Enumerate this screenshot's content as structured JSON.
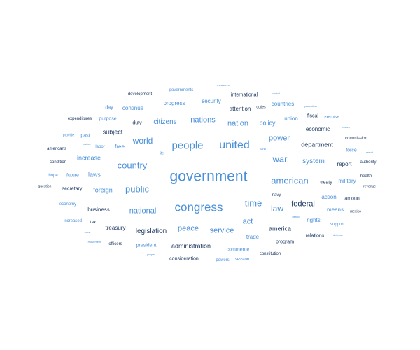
{
  "colors": {
    "blue": "#4a90d9",
    "navy": "#1f3b63"
  },
  "words": [
    {
      "text": "measures",
      "c": "blue"
    },
    {
      "text": "control",
      "c": "blue"
    },
    {
      "text": "development",
      "c": "navy"
    },
    {
      "text": "governments",
      "c": "blue"
    },
    {
      "text": "international",
      "c": "navy"
    },
    {
      "text": "security",
      "c": "blue"
    },
    {
      "text": "progress",
      "c": "blue"
    },
    {
      "text": "countries",
      "c": "blue"
    },
    {
      "text": "protection",
      "c": "blue"
    },
    {
      "text": "day",
      "c": "blue"
    },
    {
      "text": "continue",
      "c": "blue"
    },
    {
      "text": "attention",
      "c": "navy"
    },
    {
      "text": "duties",
      "c": "navy"
    },
    {
      "text": "fiscal",
      "c": "navy"
    },
    {
      "text": "executive",
      "c": "blue"
    },
    {
      "text": "expenditures",
      "c": "navy"
    },
    {
      "text": "purpose",
      "c": "blue"
    },
    {
      "text": "duty",
      "c": "navy"
    },
    {
      "text": "citizens",
      "c": "blue"
    },
    {
      "text": "nations",
      "c": "blue"
    },
    {
      "text": "nation",
      "c": "blue"
    },
    {
      "text": "policy",
      "c": "blue"
    },
    {
      "text": "union",
      "c": "blue"
    },
    {
      "text": "money",
      "c": "blue"
    },
    {
      "text": "subject",
      "c": "navy"
    },
    {
      "text": "economic",
      "c": "navy"
    },
    {
      "text": "provide",
      "c": "blue"
    },
    {
      "text": "past",
      "c": "blue"
    },
    {
      "text": "power",
      "c": "blue"
    },
    {
      "text": "commission",
      "c": "navy"
    },
    {
      "text": "world",
      "c": "blue"
    },
    {
      "text": "people",
      "c": "blue"
    },
    {
      "text": "united",
      "c": "blue"
    },
    {
      "text": "justice",
      "c": "blue"
    },
    {
      "text": "labor",
      "c": "blue"
    },
    {
      "text": "free",
      "c": "blue"
    },
    {
      "text": "department",
      "c": "navy"
    },
    {
      "text": "americans",
      "c": "navy"
    },
    {
      "text": "land",
      "c": "blue"
    },
    {
      "text": "force",
      "c": "blue"
    },
    {
      "text": "result",
      "c": "blue"
    },
    {
      "text": "life",
      "c": "blue"
    },
    {
      "text": "increase",
      "c": "blue"
    },
    {
      "text": "war",
      "c": "blue"
    },
    {
      "text": "condition",
      "c": "navy"
    },
    {
      "text": "system",
      "c": "blue"
    },
    {
      "text": "authority",
      "c": "navy"
    },
    {
      "text": "country",
      "c": "blue"
    },
    {
      "text": "report",
      "c": "navy"
    },
    {
      "text": "hope",
      "c": "blue"
    },
    {
      "text": "future",
      "c": "blue"
    },
    {
      "text": "laws",
      "c": "blue"
    },
    {
      "text": "government",
      "c": "blue"
    },
    {
      "text": "health",
      "c": "navy"
    },
    {
      "text": "american",
      "c": "blue"
    },
    {
      "text": "military",
      "c": "blue"
    },
    {
      "text": "question",
      "c": "navy"
    },
    {
      "text": "secretary",
      "c": "navy"
    },
    {
      "text": "foreign",
      "c": "blue"
    },
    {
      "text": "public",
      "c": "blue"
    },
    {
      "text": "treaty",
      "c": "navy"
    },
    {
      "text": "revenue",
      "c": "navy"
    },
    {
      "text": "navy",
      "c": "navy"
    },
    {
      "text": "action",
      "c": "blue"
    },
    {
      "text": "amount",
      "c": "navy"
    },
    {
      "text": "economy",
      "c": "blue"
    },
    {
      "text": "time",
      "c": "blue"
    },
    {
      "text": "federal",
      "c": "navy"
    },
    {
      "text": "congress",
      "c": "blue"
    },
    {
      "text": "business",
      "c": "navy"
    },
    {
      "text": "national",
      "c": "blue"
    },
    {
      "text": "law",
      "c": "blue"
    },
    {
      "text": "means",
      "c": "blue"
    },
    {
      "text": "mexico",
      "c": "navy"
    },
    {
      "text": "period",
      "c": "blue"
    },
    {
      "text": "increased",
      "c": "blue"
    },
    {
      "text": "tax",
      "c": "navy"
    },
    {
      "text": "rights",
      "c": "blue"
    },
    {
      "text": "act",
      "c": "blue"
    },
    {
      "text": "support",
      "c": "blue"
    },
    {
      "text": "most",
      "c": "blue"
    },
    {
      "text": "treasury",
      "c": "navy"
    },
    {
      "text": "peace",
      "c": "blue"
    },
    {
      "text": "america",
      "c": "navy"
    },
    {
      "text": "legislation",
      "c": "navy"
    },
    {
      "text": "service",
      "c": "blue"
    },
    {
      "text": "relations",
      "c": "navy"
    },
    {
      "text": "defense",
      "c": "blue"
    },
    {
      "text": "trade",
      "c": "blue"
    },
    {
      "text": "movement",
      "c": "blue"
    },
    {
      "text": "officers",
      "c": "navy"
    },
    {
      "text": "president",
      "c": "blue"
    },
    {
      "text": "program",
      "c": "navy"
    },
    {
      "text": "administration",
      "c": "navy"
    },
    {
      "text": "commerce",
      "c": "blue"
    },
    {
      "text": "constitution",
      "c": "navy"
    },
    {
      "text": "proper",
      "c": "blue"
    },
    {
      "text": "consideration",
      "c": "navy"
    },
    {
      "text": "powers",
      "c": "blue"
    },
    {
      "text": "session",
      "c": "blue"
    }
  ]
}
